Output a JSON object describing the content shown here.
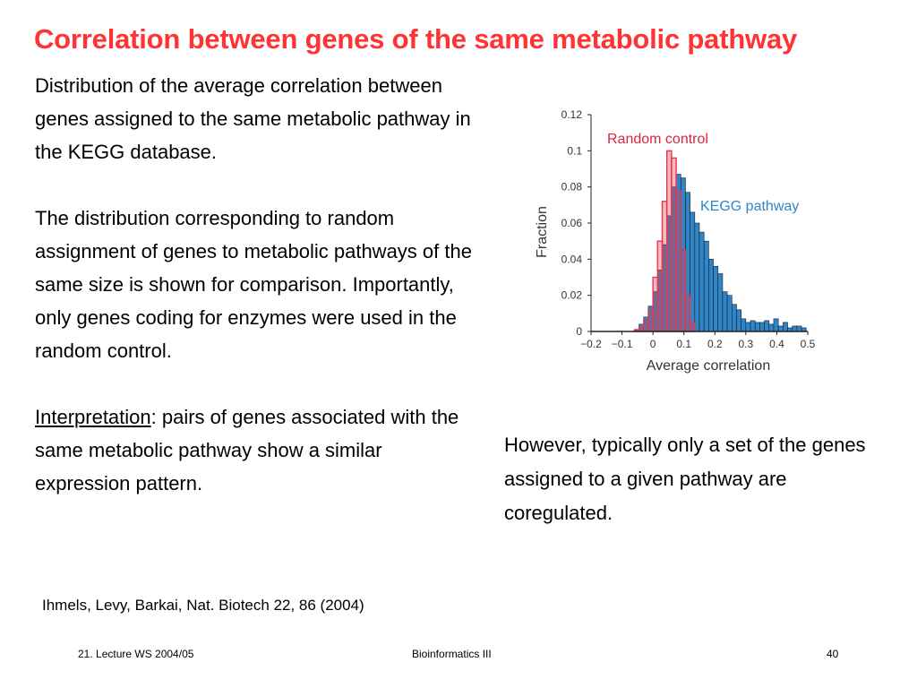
{
  "slide": {
    "title": "Correlation between genes of the same metabolic pathway",
    "left_para1": "Distribution of the average correlation between genes assigned to the same metabolic pathway in the KEGG database.",
    "left_para2": "The distribution corresponding to random assignment of genes to metabolic pathways of the same size is shown for comparison. Importantly, only genes coding for enzymes were used in the random control.",
    "interpretation_label": "Interpretation",
    "interpretation_text": ": pairs of genes associated with the same metabolic pathway show a similar expression pattern.",
    "right_text": "However, typically only a set of the genes assigned to a given pathway are coregulated.",
    "citation": "Ihmels, Levy, Barkai, Nat. Biotech 22, 86 (2004)"
  },
  "footer": {
    "left": "21. Lecture WS 2004/05",
    "center": "Bioinformatics III",
    "right": "40"
  },
  "chart_data": {
    "type": "bar",
    "xlabel": "Average correlation",
    "ylabel": "Fraction",
    "xlim": [
      -0.2,
      0.5
    ],
    "ylim": [
      0,
      0.12
    ],
    "xticks": [
      "−0.2",
      "−0.1",
      "0",
      "0.1",
      "0.2",
      "0.3",
      "0.4",
      "0.5"
    ],
    "xtick_values": [
      -0.2,
      -0.1,
      0,
      0.1,
      0.2,
      0.3,
      0.4,
      0.5
    ],
    "yticks": [
      "0",
      "0.02",
      "0.04",
      "0.06",
      "0.08",
      "0.1",
      "0.12"
    ],
    "ytick_values": [
      0,
      0.02,
      0.04,
      0.06,
      0.08,
      0.1,
      0.12
    ],
    "series": [
      {
        "name": "KEGG pathway",
        "color": "#2f86c6",
        "x": [
          -0.06,
          -0.045,
          -0.03,
          -0.015,
          0,
          0.015,
          0.03,
          0.045,
          0.06,
          0.075,
          0.09,
          0.105,
          0.12,
          0.135,
          0.15,
          0.165,
          0.18,
          0.195,
          0.21,
          0.225,
          0.24,
          0.255,
          0.27,
          0.285,
          0.3,
          0.315,
          0.33,
          0.345,
          0.36,
          0.375,
          0.39,
          0.405,
          0.42,
          0.435,
          0.45,
          0.465,
          0.48
        ],
        "values": [
          0.001,
          0.004,
          0.008,
          0.014,
          0.022,
          0.034,
          0.048,
          0.064,
          0.08,
          0.087,
          0.085,
          0.077,
          0.066,
          0.06,
          0.055,
          0.05,
          0.04,
          0.036,
          0.032,
          0.022,
          0.02,
          0.015,
          0.012,
          0.007,
          0.005,
          0.006,
          0.005,
          0.005,
          0.006,
          0.004,
          0.007,
          0.003,
          0.005,
          0.002,
          0.003,
          0.003,
          0.002
        ]
      },
      {
        "name": "Random control",
        "color": "#e8354a",
        "x": [
          -0.06,
          -0.045,
          -0.03,
          -0.015,
          0,
          0.015,
          0.03,
          0.045,
          0.06,
          0.075,
          0.09,
          0.105,
          0.12
        ],
        "values": [
          0.001,
          0.002,
          0.006,
          0.012,
          0.03,
          0.05,
          0.072,
          0.1,
          0.096,
          0.078,
          0.045,
          0.02,
          0.005
        ]
      }
    ]
  }
}
